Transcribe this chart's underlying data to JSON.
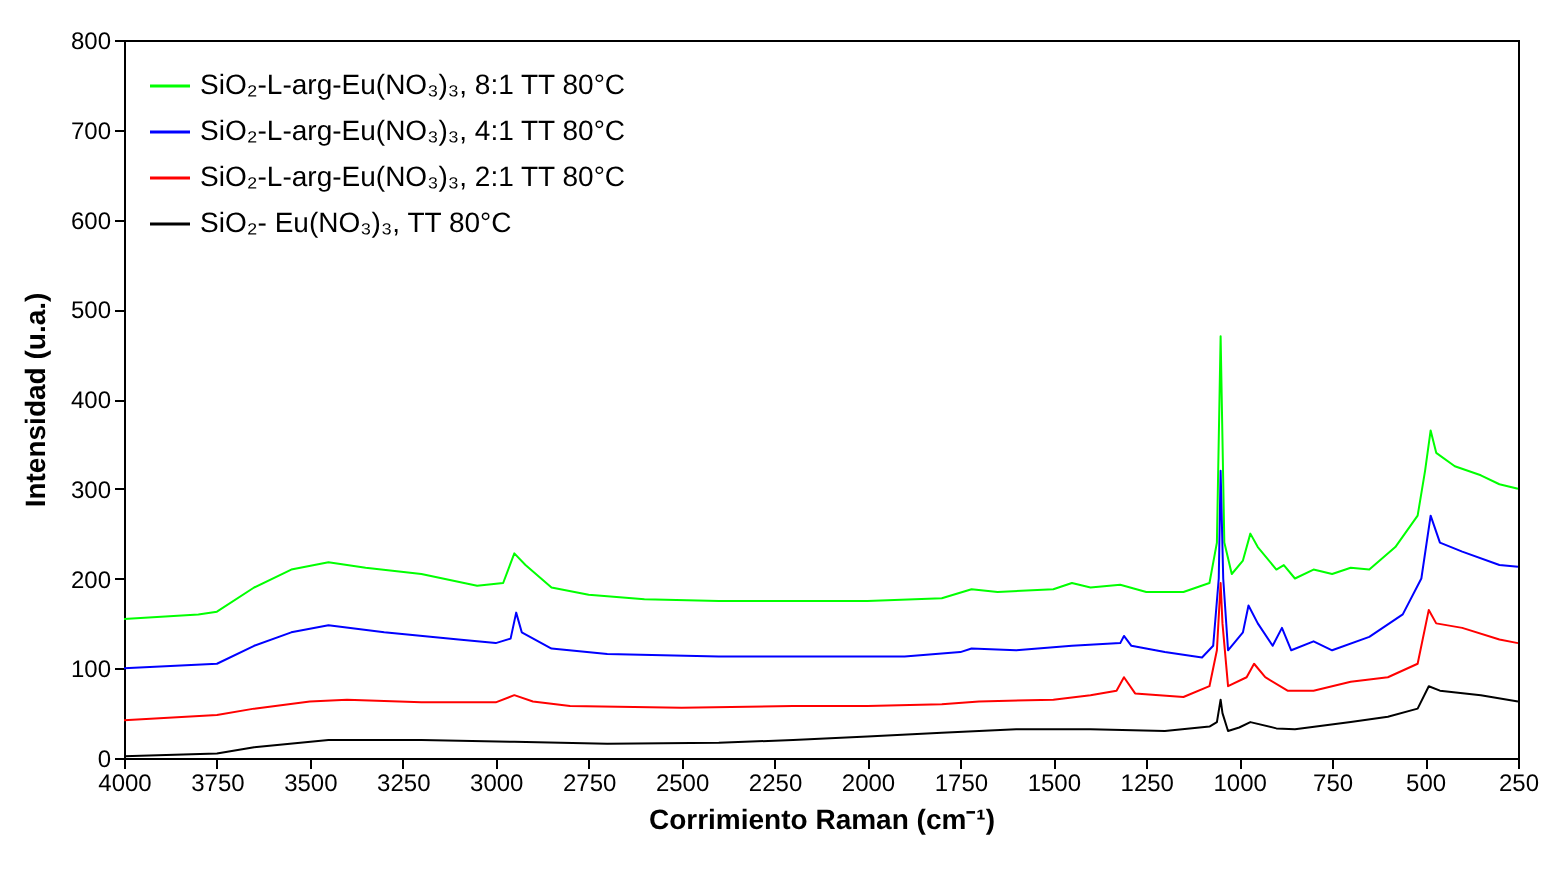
{
  "chart_data": {
    "type": "line",
    "xlabel": "Corrimiento Raman (cm⁻¹)",
    "ylabel": "Intensidad (u.a.)",
    "xlim": [
      4000,
      250
    ],
    "ylim": [
      0,
      800
    ],
    "xticks": [
      4000,
      3750,
      3500,
      3250,
      3000,
      2750,
      2500,
      2250,
      2000,
      1750,
      1500,
      1250,
      1000,
      750,
      500,
      250
    ],
    "yticks": [
      0,
      100,
      200,
      300,
      400,
      500,
      600,
      700,
      800
    ],
    "legend": "top left",
    "grid": false,
    "line_style": "solid",
    "marker": "none",
    "series": [
      {
        "name": "SiO₂-L-arg-Eu(NO₃)₃, 8:1 TT 80°C",
        "color": "#00ff00",
        "x": [
          4000,
          3800,
          3750,
          3650,
          3550,
          3450,
          3350,
          3200,
          3050,
          2980,
          2950,
          2920,
          2850,
          2750,
          2600,
          2400,
          2200,
          2000,
          1800,
          1720,
          1650,
          1500,
          1450,
          1400,
          1320,
          1250,
          1150,
          1080,
          1060,
          1050,
          1040,
          1020,
          990,
          970,
          950,
          900,
          880,
          850,
          800,
          750,
          700,
          650,
          580,
          520,
          500,
          485,
          470,
          420,
          350,
          300,
          250
        ],
        "values": [
          155,
          160,
          163,
          190,
          210,
          218,
          212,
          205,
          192,
          195,
          228,
          215,
          190,
          182,
          177,
          175,
          175,
          175,
          178,
          188,
          185,
          188,
          195,
          190,
          193,
          185,
          185,
          195,
          240,
          470,
          240,
          205,
          220,
          250,
          235,
          210,
          215,
          200,
          210,
          205,
          212,
          210,
          235,
          270,
          320,
          365,
          340,
          325,
          315,
          305,
          300
        ]
      },
      {
        "name": "SiO₂-L-arg-Eu(NO₃)₃, 4:1 TT 80°C",
        "color": "#0000ff",
        "x": [
          4000,
          3750,
          3650,
          3550,
          3450,
          3300,
          3100,
          3000,
          2960,
          2945,
          2930,
          2850,
          2700,
          2400,
          2100,
          1900,
          1750,
          1720,
          1600,
          1450,
          1320,
          1310,
          1290,
          1200,
          1100,
          1070,
          1055,
          1050,
          1043,
          1030,
          990,
          975,
          950,
          910,
          885,
          860,
          800,
          750,
          650,
          560,
          510,
          485,
          460,
          400,
          300,
          250
        ],
        "values": [
          100,
          105,
          125,
          140,
          148,
          140,
          132,
          128,
          133,
          162,
          140,
          122,
          116,
          113,
          113,
          113,
          118,
          122,
          120,
          125,
          128,
          136,
          125,
          118,
          112,
          125,
          200,
          320,
          200,
          120,
          140,
          170,
          150,
          125,
          145,
          120,
          130,
          120,
          135,
          160,
          200,
          270,
          240,
          230,
          215,
          213
        ]
      },
      {
        "name": "SiO₂-L-arg-Eu(NO₃)₃, 2:1 TT 80°C",
        "color": "#ff0000",
        "x": [
          4000,
          3750,
          3650,
          3500,
          3400,
          3200,
          3000,
          2950,
          2900,
          2800,
          2500,
          2200,
          2000,
          1800,
          1700,
          1500,
          1400,
          1330,
          1310,
          1280,
          1150,
          1080,
          1060,
          1050,
          1045,
          1030,
          980,
          960,
          930,
          870,
          800,
          700,
          600,
          520,
          490,
          470,
          400,
          300,
          250
        ],
        "values": [
          42,
          48,
          55,
          63,
          65,
          62,
          62,
          70,
          63,
          58,
          56,
          58,
          58,
          60,
          63,
          65,
          70,
          75,
          90,
          72,
          68,
          80,
          120,
          195,
          150,
          80,
          90,
          105,
          90,
          75,
          75,
          85,
          90,
          105,
          165,
          150,
          145,
          132,
          128
        ]
      },
      {
        "name": "SiO₂- Eu(NO₃)₃, TT 80°C",
        "color": "#000000",
        "x": [
          4000,
          3750,
          3650,
          3450,
          3200,
          2950,
          2700,
          2400,
          2200,
          2000,
          1800,
          1600,
          1400,
          1200,
          1080,
          1060,
          1050,
          1045,
          1030,
          1000,
          970,
          900,
          850,
          700,
          600,
          520,
          490,
          460,
          350,
          250
        ],
        "values": [
          2,
          5,
          12,
          20,
          20,
          18,
          16,
          17,
          20,
          24,
          28,
          32,
          32,
          30,
          35,
          40,
          65,
          50,
          30,
          34,
          40,
          33,
          32,
          40,
          46,
          55,
          80,
          75,
          70,
          63
        ]
      }
    ]
  }
}
